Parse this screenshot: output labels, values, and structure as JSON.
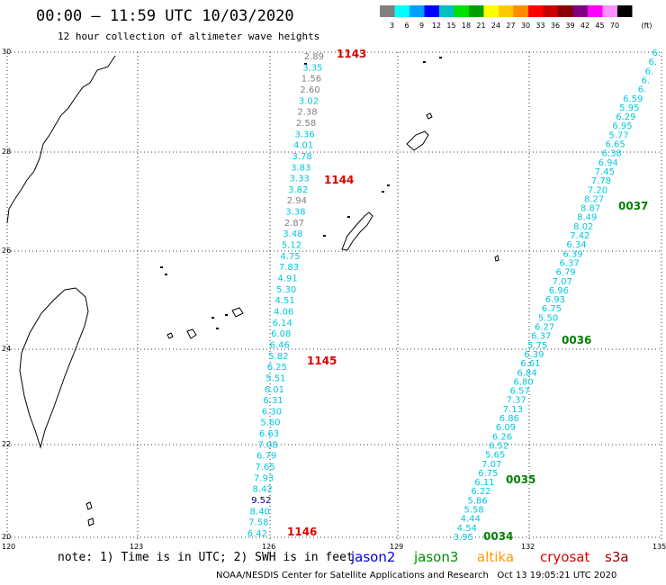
{
  "header": {
    "title": "00:00 – 11:59 UTC 10/03/2020",
    "subtitle": "12 hour collection of altimeter wave heights"
  },
  "legend": {
    "unit": "(ft)",
    "labels": [
      "3",
      "6",
      "9",
      "12",
      "15",
      "18",
      "21",
      "24",
      "27",
      "30",
      "33",
      "36",
      "39",
      "42",
      "45",
      "70"
    ],
    "colors": [
      "#808080",
      "#00ffff",
      "#00a0ff",
      "#0000ff",
      "#00c0c0",
      "#00e000",
      "#00a000",
      "#ffff00",
      "#ffc800",
      "#ff8c00",
      "#ff0000",
      "#c80000",
      "#8b0000",
      "#800080",
      "#ff00ff",
      "#ff90ff",
      "#000000"
    ]
  },
  "axes": {
    "lat_labels": [
      "30",
      "28",
      "26",
      "24",
      "22",
      "20"
    ],
    "lon_labels": [
      "120",
      "123",
      "126",
      "129",
      "132",
      "135"
    ]
  },
  "passes": [
    {
      "label": "1143",
      "color": "#dd0000"
    },
    {
      "label": "1144",
      "color": "#dd0000"
    },
    {
      "label": "1145",
      "color": "#dd0000"
    },
    {
      "label": "1146",
      "color": "#dd0000"
    },
    {
      "label": "0037",
      "color": "#008000"
    },
    {
      "label": "0036",
      "color": "#008000"
    },
    {
      "label": "0035",
      "color": "#008000"
    },
    {
      "label": "0034",
      "color": "#008000"
    }
  ],
  "track_west": {
    "values": [
      "2.89",
      "3.35",
      "1.56",
      "2.60",
      "3.02",
      "2.38",
      "2.58",
      "3.36",
      "4.01",
      "3.78",
      "3.83",
      "3.33",
      "3.82",
      "2.94",
      "3.38",
      "2.87",
      "3.48",
      "5.12",
      "4.75",
      "7.83",
      "4.91",
      "5.30",
      "4.51",
      "4.06",
      "6.14",
      "6.08",
      "6.46",
      "5.82",
      "6.25",
      "5.51",
      "6.01",
      "6.31",
      "6.30",
      "5.60",
      "6.63",
      "7.08",
      "6.79",
      "7.65",
      "7.93",
      "8.42",
      "9.52",
      "8.40",
      "7.58",
      "6.42"
    ],
    "colors": [
      "#808080",
      "#00c8e0",
      "#808080",
      "#808080",
      "#00c8e0",
      "#808080",
      "#808080",
      "#00c8e0",
      "#00c8e0",
      "#00c8e0",
      "#00c8e0",
      "#00c8e0",
      "#00c8e0",
      "#808080",
      "#00c8e0",
      "#808080",
      "#00c8e0",
      "#00c8e0",
      "#00c8e0",
      "#00c8e0",
      "#00c8e0",
      "#00c8e0",
      "#00c8e0",
      "#00c8e0",
      "#00c8e0",
      "#00c8e0",
      "#00c8e0",
      "#00c8e0",
      "#00c8e0",
      "#00c8e0",
      "#00c8e0",
      "#00c8e0",
      "#00c8e0",
      "#00c8e0",
      "#00c8e0",
      "#00c8e0",
      "#00c8e0",
      "#00c8e0",
      "#00c8e0",
      "#00c8e0",
      "#000080",
      "#00c8e0",
      "#00c8e0",
      "#00c8e0"
    ]
  },
  "track_east": {
    "values": [
      "6.",
      "6.",
      "6.",
      "6.",
      "6.",
      "6.59",
      "5.95",
      "6.29",
      "6.95",
      "5.77",
      "6.65",
      "6.38",
      "6.94",
      "7.45",
      "7.78",
      "7.20",
      "8.27",
      "8.87",
      "8.49",
      "8.02",
      "7.42",
      "6.34",
      "6.39",
      "6.37",
      "6.79",
      "7.07",
      "6.96",
      "6.93",
      "6.75",
      "5.50",
      "6.27",
      "6.37",
      "5.75",
      "6.39",
      "6.61",
      "6.84",
      "6.80",
      "6.57",
      "7.37",
      "7.13",
      "6.86",
      "6.09",
      "6.26",
      "6.52",
      "5.65",
      "7.07",
      "6.75",
      "6.11",
      "6.22",
      "5.86",
      "5.58",
      "4.44",
      "4.54",
      "3.95"
    ]
  },
  "footer": {
    "note": "note: 1) Time is in UTC; 2) SWH is in feet",
    "satellites": [
      {
        "name": "jason2",
        "color": "#0000dd"
      },
      {
        "name": "jason3",
        "color": "#009000"
      },
      {
        "name": "altika",
        "color": "#ff9a00"
      },
      {
        "name": "cryosat",
        "color": "#dd0000"
      },
      {
        "name": "s3a",
        "color": "#990000"
      }
    ],
    "credit": "NOAA/NESDIS Center for Satellite Applications and Research   Oct 13 19:05:21 UTC 2020"
  }
}
